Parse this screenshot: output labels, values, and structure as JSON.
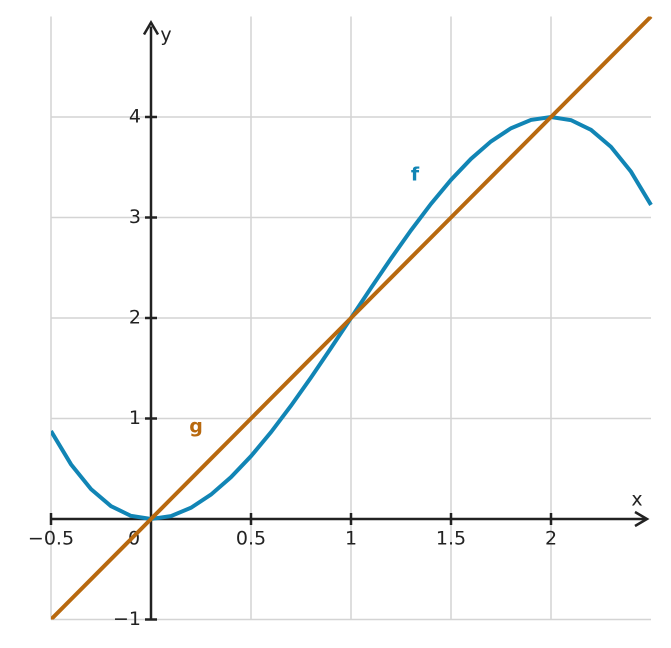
{
  "chart_data": {
    "type": "line",
    "x_label": "x",
    "y_label": "y",
    "x": [
      -0.5,
      -0.4,
      -0.3,
      -0.2,
      -0.1,
      0,
      0.1,
      0.2,
      0.3,
      0.4,
      0.5,
      0.6,
      0.7,
      0.8,
      0.9,
      1,
      1.1,
      1.2,
      1.3,
      1.4,
      1.5,
      1.6,
      1.7,
      1.8,
      1.9,
      2,
      2.1,
      2.2,
      2.3,
      2.4,
      2.5
    ],
    "series": [
      {
        "name": "f",
        "color": "#1185b5",
        "values": [
          0.875,
          0.544,
          0.297,
          0.128,
          0.031,
          0,
          0.029,
          0.112,
          0.243,
          0.416,
          0.625,
          0.864,
          1.127,
          1.408,
          1.701,
          2,
          2.299,
          2.592,
          2.873,
          3.136,
          3.375,
          3.584,
          3.757,
          3.888,
          3.971,
          4,
          3.969,
          3.872,
          3.703,
          3.456,
          3.125
        ]
      },
      {
        "name": "g",
        "color": "#b8690f",
        "values": [
          -1,
          -0.8,
          -0.6,
          -0.4,
          -0.2,
          0,
          0.2,
          0.4,
          0.6,
          0.8,
          1,
          1.2,
          1.4,
          1.6,
          1.8,
          2,
          2.2,
          2.4,
          2.6,
          2.8,
          3,
          3.2,
          3.4,
          3.6,
          3.8,
          4,
          4.2,
          4.4,
          4.6,
          4.8,
          5
        ]
      }
    ],
    "xlim": [
      -0.5,
      2.5
    ],
    "ylim": [
      -1,
      5
    ],
    "xticks": [
      {
        "value": -0.5,
        "label": "−0.5"
      },
      0,
      0.5,
      1,
      1.5,
      2
    ],
    "yticks": [
      {
        "value": -1,
        "label": "−1"
      },
      1,
      2,
      3,
      4
    ],
    "grid": true
  }
}
